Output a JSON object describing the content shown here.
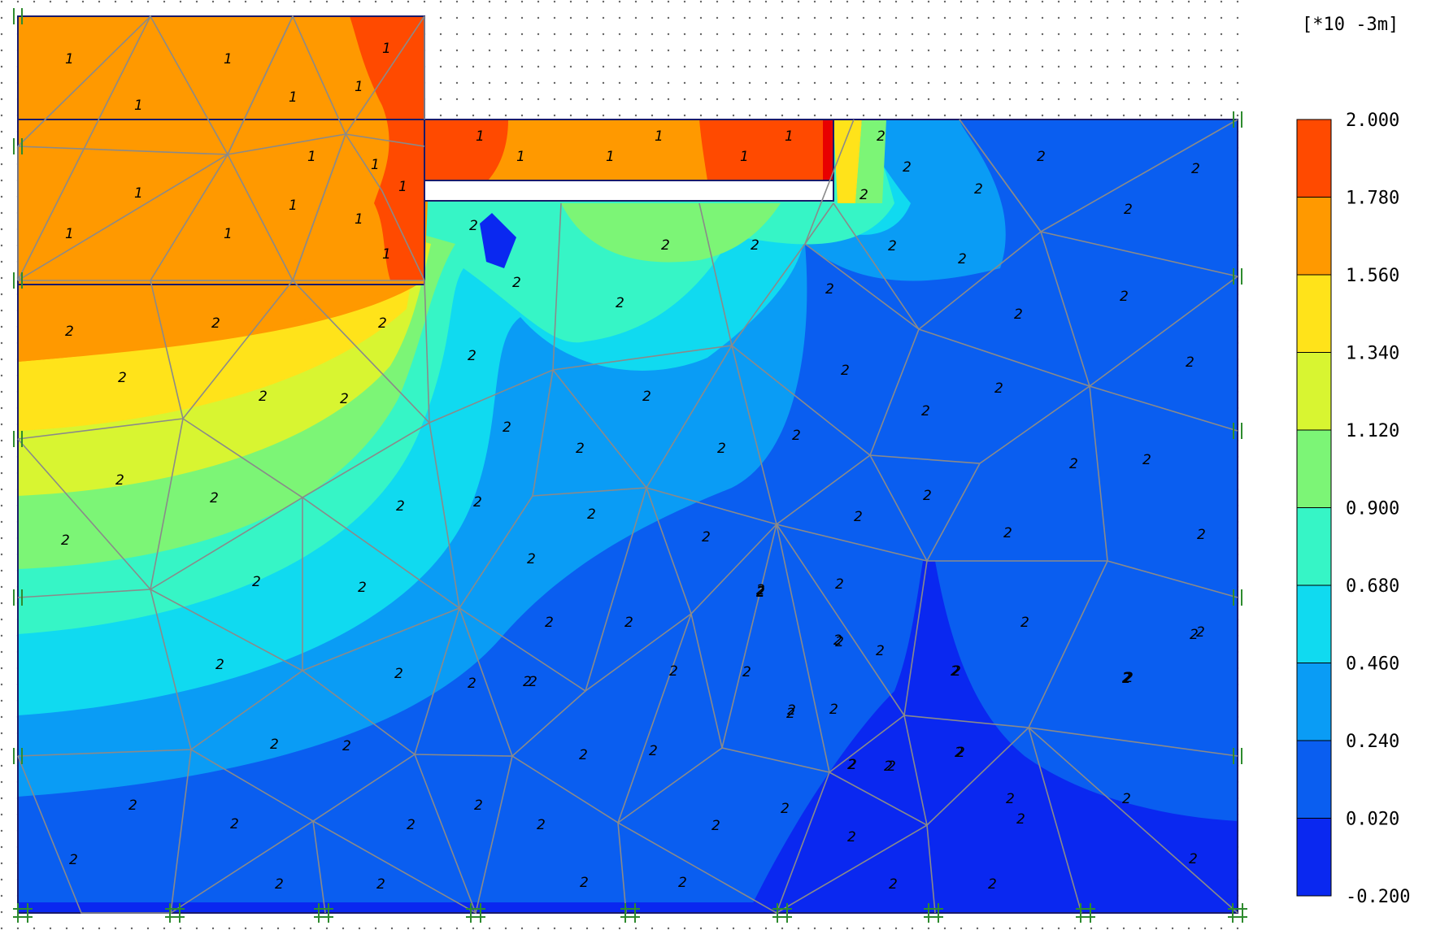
{
  "unit_label": "[*10 -3m]",
  "legend": {
    "levels": [
      "2.000",
      "1.780",
      "1.560",
      "1.340",
      "1.120",
      "0.900",
      "0.680",
      "0.460",
      "0.240",
      "0.020",
      "-0.200"
    ],
    "colors": [
      "#ff4a00",
      "#ff9900",
      "#ffe31a",
      "#d8f531",
      "#7cf576",
      "#36f5c6",
      "#10daf0",
      "#0a9cf5",
      "#0a5ef0",
      "#0a28f0"
    ]
  },
  "cluster_labels": {
    "one": "1",
    "two": "2"
  }
}
